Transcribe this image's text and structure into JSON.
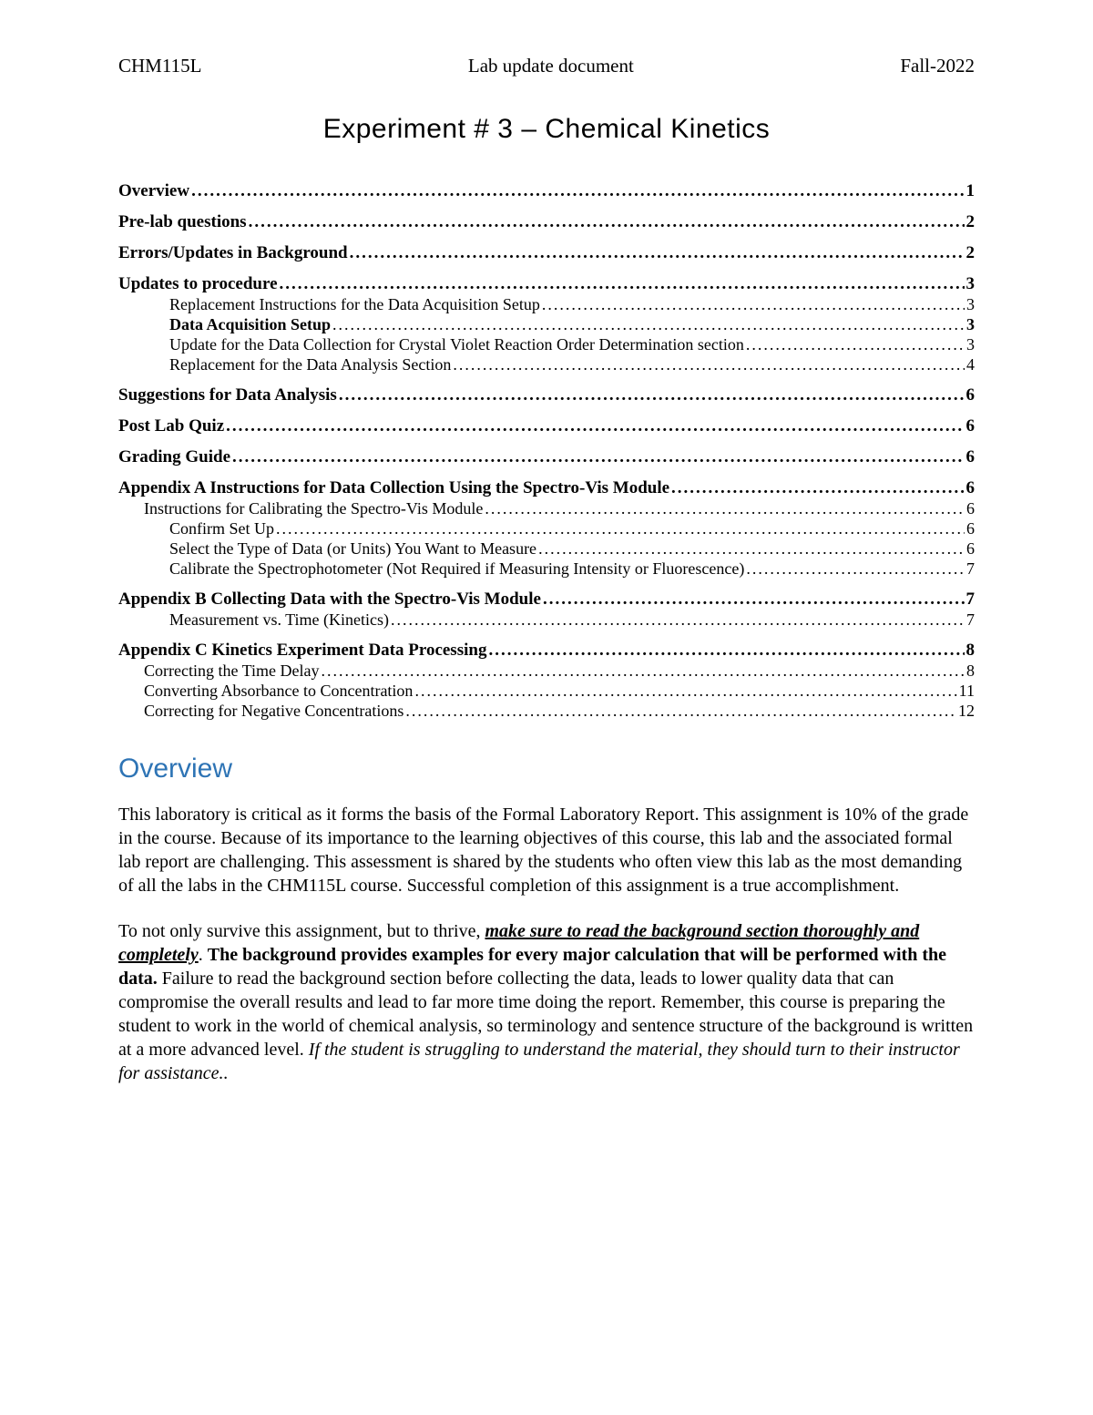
{
  "header": {
    "left": "CHM115L",
    "center": "Lab update document",
    "right": "Fall-2022"
  },
  "title": "Experiment # 3 – Chemical Kinetics",
  "toc": [
    {
      "level": 0,
      "label": "Overview",
      "page": "1"
    },
    {
      "level": 0,
      "label": "Pre-lab questions",
      "page": "2"
    },
    {
      "level": 0,
      "label": "Errors/Updates in Background",
      "page": "2"
    },
    {
      "level": 0,
      "label": "Updates to procedure",
      "page": "3"
    },
    {
      "level": 2,
      "label": "Replacement Instructions for the Data Acquisition Setup",
      "page": "3"
    },
    {
      "level": 2,
      "label": "Data Acquisition Setup",
      "page": "3",
      "bold": true
    },
    {
      "level": 2,
      "label": "Update for the Data Collection for Crystal Violet Reaction Order Determination section",
      "page": "3"
    },
    {
      "level": 2,
      "label": "Replacement for the Data Analysis Section",
      "page": "4"
    },
    {
      "level": 0,
      "label": "Suggestions for Data Analysis",
      "page": "6"
    },
    {
      "level": 0,
      "label": "Post Lab Quiz",
      "page": "6"
    },
    {
      "level": 0,
      "label": "Grading Guide",
      "page": "6"
    },
    {
      "level": 0,
      "label": "Appendix A Instructions for Data Collection Using the Spectro-Vis Module",
      "page": "6"
    },
    {
      "level": 1,
      "label": "Instructions for Calibrating the Spectro-Vis Module",
      "page": "6"
    },
    {
      "level": 2,
      "label": "Confirm Set Up",
      "page": "6"
    },
    {
      "level": 2,
      "label": "Select the Type of Data (or Units) You Want to Measure",
      "page": "6"
    },
    {
      "level": 2,
      "label": "Calibrate the Spectrophotometer (Not Required if Measuring Intensity or Fluorescence)",
      "page": "7"
    },
    {
      "level": 0,
      "label": "Appendix B Collecting Data with the Spectro-Vis Module",
      "page": "7"
    },
    {
      "level": 2,
      "label": "Measurement vs. Time (Kinetics)",
      "page": "7"
    },
    {
      "level": 0,
      "label": "Appendix C Kinetics Experiment Data Processing",
      "page": "8"
    },
    {
      "level": 1,
      "label": "Correcting the Time Delay",
      "page": "8"
    },
    {
      "level": 1,
      "label": "Converting Absorbance to Concentration",
      "page": "11"
    },
    {
      "level": 1,
      "label": "Correcting for Negative Concentrations",
      "page": "12"
    }
  ],
  "section_heading": "Overview",
  "body": {
    "p1": "This laboratory is critical as it forms the basis of the Formal Laboratory Report. This assignment is 10% of the grade in the course.  Because of its importance to the learning objectives of this course, this lab and the associated formal lab report are challenging. This assessment is shared by the students who often view this lab as the most demanding of all the labs in the CHM115L course. Successful completion of this assignment is a true accomplishment.",
    "p2_lead": "To not only survive this assignment, but to thrive, ",
    "p2_emph1": "make sure to read the background section thoroughly and completely",
    "p2_period": ". ",
    "p2_bold": "The background provides examples for every major calculation that will be performed with the data.",
    "p2_mid": " Failure to read the background section before collecting the data, leads to lower quality data that can compromise the overall results and lead to far more time doing the report. Remember, this course is preparing the student to work in the world of chemical analysis, so terminology and sentence structure of the background is written at a more advanced level. ",
    "p2_ital": "If the student is struggling to understand the material, they should turn to their instructor for assistance.",
    "p2_end_period": "."
  },
  "colors": {
    "heading": "#2e74b5",
    "text": "#000000",
    "background": "#ffffff"
  },
  "typography": {
    "body_family": "Times New Roman",
    "title_family": "Verdana",
    "title_size_pt": 22,
    "heading_size_pt": 22,
    "body_size_pt": 15,
    "toc_l0_size_pt": 14,
    "toc_sub_size_pt": 13
  }
}
